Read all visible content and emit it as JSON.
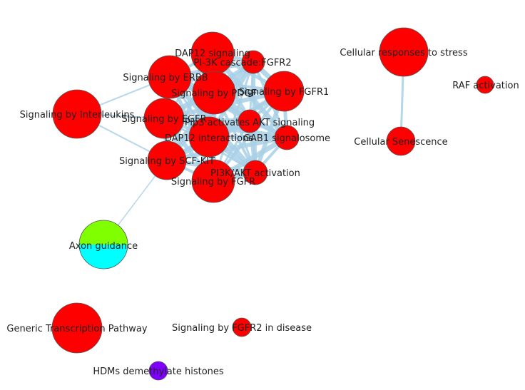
{
  "colors": {
    "edge": "#a8d0e6",
    "node_red": "#ff0000",
    "node_green": "#80ff00",
    "node_cyan": "#00ffff",
    "node_purple": "#7f00ff",
    "stroke": "#555555"
  },
  "nodes": {
    "dap12_signaling": "DAP12 signaling",
    "pi3k_fgfr2": "PI-3K cascade:FGFR2",
    "signaling_erbb": "Signaling by ERBB",
    "signaling_pdgf": "Signaling by PDGF",
    "signaling_fgfr1": "Signaling by FGFR1",
    "signaling_interleukins": "Signaling by Interleukins",
    "signaling_egfr": "Signaling by EGFR",
    "activates_akt": "Pip3 activates AKT signaling",
    "dap12_interactions": "DAP12 interactions",
    "gab1": "GAB1 signalosome",
    "signaling_scf_kit": "Signaling by SCF-KIT",
    "pi3k_akt": "PI3K/AKT activation",
    "signaling_fgfr": "Signaling by FGFR",
    "cellular_stress": "Cellular responses to stress",
    "raf_activation": "RAF activation",
    "cellular_senescence": "Cellular Senescence",
    "axon_guidance": "Axon guidance",
    "generic_transcription": "Generic Transcription Pathway",
    "fgfr2_disease": "Signaling by FGFR2 in disease",
    "hdms": "HDMs demethylate histones"
  }
}
